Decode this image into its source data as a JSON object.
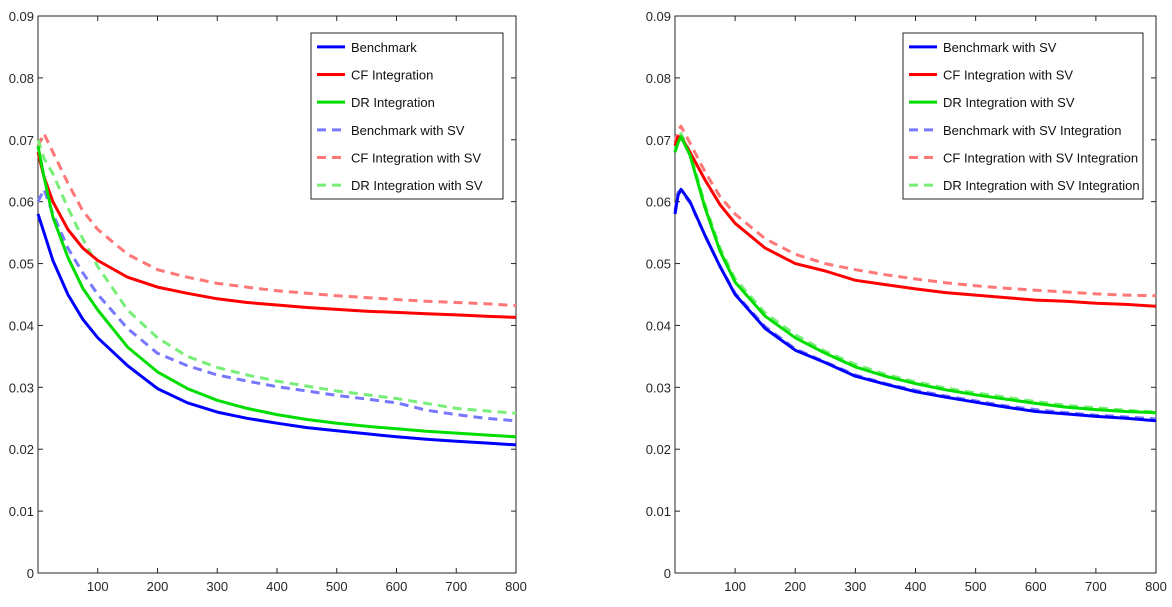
{
  "chart_data": [
    {
      "type": "line",
      "title": "",
      "xlabel": "",
      "ylabel": "",
      "xlim": [
        0,
        800
      ],
      "ylim": [
        0,
        0.09
      ],
      "xticks": [
        "100",
        "200",
        "300",
        "400",
        "500",
        "600",
        "700",
        "800"
      ],
      "yticks": [
        "0",
        "0.01",
        "0.02",
        "0.03",
        "0.04",
        "0.05",
        "0.06",
        "0.07",
        "0.08",
        "0.09"
      ],
      "grid": false,
      "legend_position": "top-right",
      "x": [
        0,
        10,
        25,
        50,
        75,
        100,
        150,
        200,
        250,
        300,
        350,
        400,
        450,
        500,
        550,
        600,
        650,
        700,
        750,
        800
      ],
      "series": [
        {
          "name": "Benchmark",
          "color": "#0000ff",
          "style": "solid",
          "values": [
            0.058,
            0.055,
            0.0505,
            0.045,
            0.041,
            0.038,
            0.0335,
            0.0298,
            0.0275,
            0.026,
            0.025,
            0.0242,
            0.0235,
            0.023,
            0.0225,
            0.022,
            0.0216,
            0.0213,
            0.021,
            0.0207
          ]
        },
        {
          "name": "CF Integration",
          "color": "#ff0000",
          "style": "solid",
          "values": [
            0.068,
            0.064,
            0.06,
            0.0555,
            0.0525,
            0.0505,
            0.0478,
            0.0462,
            0.0452,
            0.0443,
            0.0437,
            0.0433,
            0.0429,
            0.0426,
            0.0423,
            0.0421,
            0.0419,
            0.0417,
            0.0415,
            0.0413
          ]
        },
        {
          "name": "DR Integration",
          "color": "#00dd00",
          "style": "solid",
          "values": [
            0.069,
            0.064,
            0.0575,
            0.051,
            0.046,
            0.0425,
            0.0365,
            0.0325,
            0.0298,
            0.0279,
            0.0266,
            0.0256,
            0.0248,
            0.0242,
            0.0237,
            0.0233,
            0.0229,
            0.0226,
            0.0223,
            0.022
          ]
        },
        {
          "name": "Benchmark with SV",
          "color": "#7777ff",
          "style": "dashed",
          "values": [
            0.06,
            0.062,
            0.058,
            0.0525,
            0.0485,
            0.045,
            0.0395,
            0.0355,
            0.0335,
            0.032,
            0.031,
            0.0301,
            0.0294,
            0.0287,
            0.0281,
            0.0275,
            0.0263,
            0.0256,
            0.025,
            0.0246
          ]
        },
        {
          "name": "CF Integration with SV",
          "color": "#ff7777",
          "style": "dashed",
          "values": [
            0.069,
            0.071,
            0.068,
            0.063,
            0.0585,
            0.0555,
            0.0515,
            0.049,
            0.0478,
            0.0468,
            0.0462,
            0.0456,
            0.0452,
            0.0448,
            0.0445,
            0.0442,
            0.0439,
            0.0437,
            0.0435,
            0.0432
          ]
        },
        {
          "name": "DR Integration with SV",
          "color": "#77ee77",
          "style": "dashed",
          "values": [
            0.07,
            0.067,
            0.0645,
            0.059,
            0.054,
            0.0495,
            0.0425,
            0.038,
            0.035,
            0.0332,
            0.032,
            0.031,
            0.0302,
            0.0294,
            0.0288,
            0.0282,
            0.0274,
            0.0266,
            0.0262,
            0.0258
          ]
        }
      ]
    },
    {
      "type": "line",
      "title": "",
      "xlabel": "",
      "ylabel": "",
      "xlim": [
        0,
        800
      ],
      "ylim": [
        0,
        0.09
      ],
      "xticks": [
        "100",
        "200",
        "300",
        "400",
        "500",
        "600",
        "700",
        "800"
      ],
      "yticks": [
        "0",
        "0.01",
        "0.02",
        "0.03",
        "0.04",
        "0.05",
        "0.06",
        "0.07",
        "0.08",
        "0.09"
      ],
      "grid": false,
      "legend_position": "top-right",
      "x": [
        0,
        5,
        10,
        25,
        50,
        75,
        100,
        150,
        200,
        250,
        300,
        350,
        400,
        450,
        500,
        550,
        600,
        650,
        700,
        750,
        800
      ],
      "series": [
        {
          "name": "Benchmark with SV",
          "color": "#0000ff",
          "style": "solid",
          "values": [
            0.058,
            0.061,
            0.062,
            0.06,
            0.0545,
            0.0495,
            0.045,
            0.0395,
            0.036,
            0.034,
            0.0318,
            0.0305,
            0.0293,
            0.0284,
            0.0276,
            0.0268,
            0.0261,
            0.0257,
            0.0253,
            0.025,
            0.0246
          ]
        },
        {
          "name": "CF Integration with SV",
          "color": "#ff0000",
          "style": "solid",
          "values": [
            0.069,
            0.0705,
            0.0705,
            0.068,
            0.0635,
            0.0595,
            0.0565,
            0.0525,
            0.05,
            0.0488,
            0.0473,
            0.0466,
            0.0459,
            0.0453,
            0.0449,
            0.0445,
            0.0441,
            0.0439,
            0.0436,
            0.0434,
            0.0431
          ]
        },
        {
          "name": "DR Integration with SV",
          "color": "#00dd00",
          "style": "solid",
          "values": [
            0.068,
            0.0695,
            0.0705,
            0.0675,
            0.059,
            0.052,
            0.047,
            0.0415,
            0.038,
            0.0355,
            0.0333,
            0.0318,
            0.0306,
            0.0296,
            0.0288,
            0.0281,
            0.0274,
            0.0268,
            0.0264,
            0.0261,
            0.0259
          ]
        },
        {
          "name": "Benchmark with SV Integration",
          "color": "#7777ff",
          "style": "dashed",
          "values": [
            0.0585,
            0.0615,
            0.0618,
            0.0598,
            0.0545,
            0.0495,
            0.0452,
            0.0398,
            0.0362,
            0.0341,
            0.032,
            0.0306,
            0.0295,
            0.0286,
            0.0278,
            0.027,
            0.0264,
            0.0259,
            0.0255,
            0.0252,
            0.0249
          ]
        },
        {
          "name": "CF Integration with SV Integration",
          "color": "#ff7777",
          "style": "dashed",
          "values": [
            0.0695,
            0.0715,
            0.0722,
            0.0695,
            0.0648,
            0.0608,
            0.058,
            0.054,
            0.0515,
            0.05,
            0.049,
            0.0482,
            0.0475,
            0.0469,
            0.0464,
            0.046,
            0.0457,
            0.0454,
            0.0451,
            0.0449,
            0.0448
          ]
        },
        {
          "name": "DR Integration with SV Integration",
          "color": "#77ee77",
          "style": "dashed",
          "values": [
            0.0685,
            0.0702,
            0.071,
            0.068,
            0.0595,
            0.0525,
            0.0475,
            0.042,
            0.0385,
            0.0358,
            0.0337,
            0.0321,
            0.0309,
            0.0299,
            0.0291,
            0.0284,
            0.0277,
            0.0271,
            0.0267,
            0.0263,
            0.026
          ]
        }
      ]
    }
  ]
}
